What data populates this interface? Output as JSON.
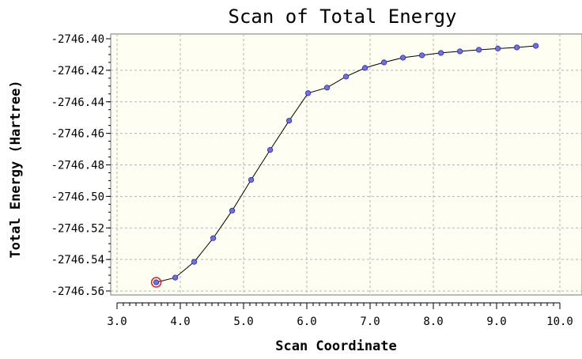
{
  "chart_data": {
    "type": "line",
    "title": "Scan of Total Energy",
    "xlabel": "Scan Coordinate",
    "ylabel": "Total Energy (Hartree)",
    "xlim": [
      3.0,
      10.0
    ],
    "ylim": [
      -2746.565,
      -2746.395
    ],
    "x_ticks": [
      "3.0",
      "4.0",
      "5.0",
      "6.0",
      "7.0",
      "8.0",
      "9.0",
      "10.0"
    ],
    "y_ticks": [
      "-2746.40",
      "-2746.42",
      "-2746.44",
      "-2746.46",
      "-2746.48",
      "-2746.50",
      "-2746.52",
      "-2746.54",
      "-2746.56"
    ],
    "grid": true,
    "plot_background": "#fefef2",
    "line_color": "#000000",
    "marker_color": "#6f6fe6",
    "highlight_color": "#e0201e",
    "highlight_point_index": 0,
    "series": [
      {
        "x": [
          3.62,
          3.92,
          4.22,
          4.52,
          4.82,
          5.12,
          5.42,
          5.72,
          6.02,
          6.32,
          6.62,
          6.92,
          7.22,
          7.52,
          7.82,
          8.12,
          8.42,
          8.72,
          9.02,
          9.32,
          9.62
        ],
        "y": [
          -2746.5545,
          -2746.5515,
          -2746.5415,
          -2746.5265,
          -2746.509,
          -2746.4895,
          -2746.4705,
          -2746.452,
          -2746.4345,
          -2746.431,
          -2746.424,
          -2746.4185,
          -2746.415,
          -2746.412,
          -2746.4105,
          -2746.409,
          -2746.408,
          -2746.407,
          -2746.4062,
          -2746.4055,
          -2746.4045
        ]
      }
    ]
  }
}
